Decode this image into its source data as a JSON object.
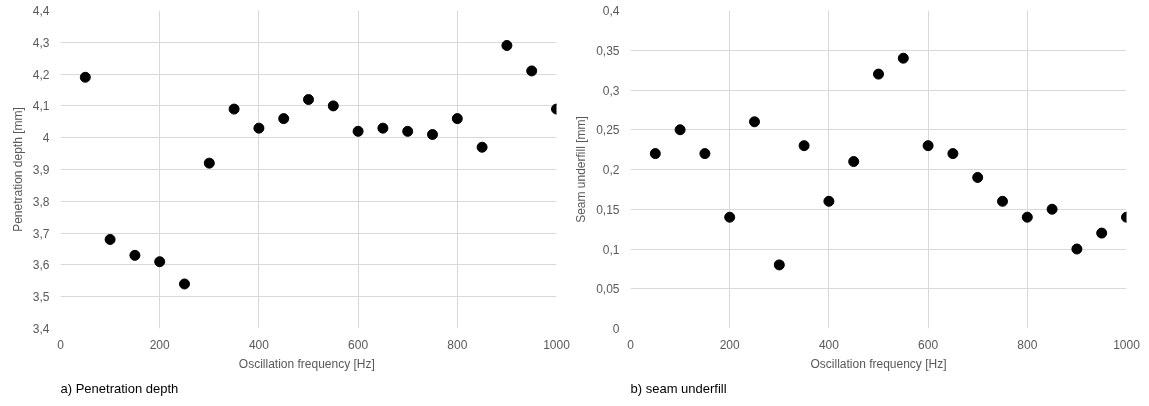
{
  "chart_data": [
    {
      "type": "scatter",
      "xlabel": "Oscillation  frequency [Hz]",
      "ylabel": "Penetration depth [mm]",
      "annotations": [
        "a)      Penetration depth"
      ],
      "marker": "circle",
      "grid": true,
      "xlim": [
        0,
        1000
      ],
      "xticks": [
        0,
        200,
        400,
        600,
        800,
        1000
      ],
      "ylim": [
        3.4,
        4.4
      ],
      "yticks": [
        {
          "value": 3.4,
          "label": "3,4"
        },
        {
          "value": 3.5,
          "label": "3,5"
        },
        {
          "value": 3.6,
          "label": "3,6"
        },
        {
          "value": 3.7,
          "label": "3,7"
        },
        {
          "value": 3.8,
          "label": "3,8"
        },
        {
          "value": 3.9,
          "label": "3,9"
        },
        {
          "value": 4,
          "label": "4"
        },
        {
          "value": 4.1,
          "label": "4,1"
        },
        {
          "value": 4.2,
          "label": "4,2"
        },
        {
          "value": 4.3,
          "label": "4,3"
        },
        {
          "value": 4.4,
          "label": "4,4"
        }
      ],
      "x": [
        50,
        100,
        150,
        200,
        250,
        300,
        350,
        400,
        450,
        500,
        550,
        600,
        650,
        700,
        750,
        800,
        850,
        900,
        950,
        1000
      ],
      "series": [
        {
          "color": "#000000",
          "values": [
            4.19,
            3.68,
            3.63,
            3.61,
            3.54,
            3.92,
            4.09,
            4.03,
            4.06,
            4.12,
            4.1,
            4.02,
            4.03,
            4.02,
            4.01,
            4.06,
            3.97,
            4.29,
            4.21,
            4.09
          ]
        }
      ]
    },
    {
      "type": "scatter",
      "xlabel": "Oscillation frequency [Hz]",
      "ylabel": "Seam underfill [mm]",
      "annotations": [
        "b)      seam underfill"
      ],
      "marker": "circle",
      "grid": true,
      "xlim": [
        0,
        1000
      ],
      "xticks": [
        0,
        200,
        400,
        600,
        800,
        1000
      ],
      "ylim": [
        0,
        0.4
      ],
      "yticks": [
        0,
        {
          "value": 0.05,
          "label": "0,05"
        },
        {
          "value": 0.1,
          "label": "0,1"
        },
        {
          "value": 0.15,
          "label": "0,15"
        },
        {
          "value": 0.2,
          "label": "0,2"
        },
        {
          "value": 0.25,
          "label": "0,25"
        },
        {
          "value": 0.3,
          "label": "0,3"
        },
        {
          "value": 0.35,
          "label": "0,35"
        },
        {
          "value": 0.4,
          "label": "0,4"
        }
      ],
      "x": [
        50,
        100,
        150,
        200,
        250,
        300,
        350,
        400,
        450,
        500,
        550,
        600,
        650,
        700,
        750,
        800,
        850,
        900,
        950,
        1000
      ],
      "series": [
        {
          "color": "#000000",
          "values": [
            0.22,
            0.25,
            0.22,
            0.14,
            0.26,
            0.08,
            0.23,
            0.16,
            0.21,
            0.32,
            0.34,
            0.23,
            0.22,
            0.19,
            0.16,
            0.14,
            0.15,
            0.1,
            0.12,
            0.14
          ]
        }
      ]
    }
  ]
}
